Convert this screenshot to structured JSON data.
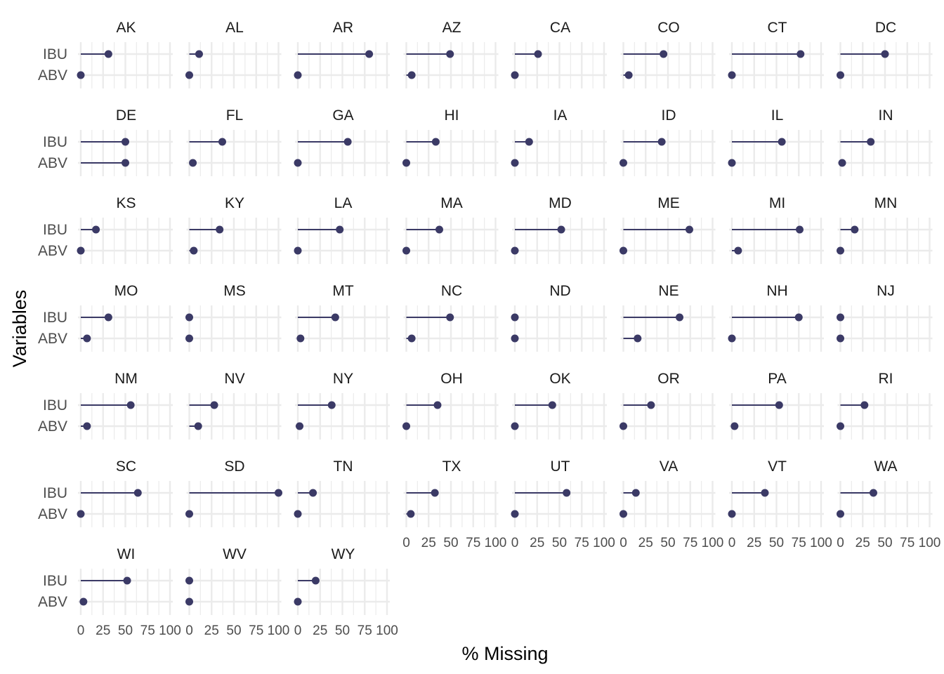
{
  "chart_data": {
    "type": "lollipop",
    "layout": "faceted",
    "ncol": 8,
    "xlabel": "% Missing",
    "ylabel": "Variables",
    "variables": [
      "IBU",
      "ABV"
    ],
    "xlim": [
      0,
      100
    ],
    "x_ticks": [
      0,
      25,
      50,
      75,
      100
    ],
    "x_tick_labels": [
      "0",
      "25",
      "50",
      "75",
      "100"
    ],
    "grid": true,
    "colors": {
      "point": "#3b3a66",
      "grid": "#ebebeb",
      "text": "#4d4d4d"
    },
    "facets": [
      {
        "state": "AK",
        "IBU": 31,
        "ABV": 0
      },
      {
        "state": "AL",
        "IBU": 11,
        "ABV": 0
      },
      {
        "state": "AR",
        "IBU": 80,
        "ABV": 0
      },
      {
        "state": "AZ",
        "IBU": 49,
        "ABV": 6
      },
      {
        "state": "CA",
        "IBU": 26,
        "ABV": 0
      },
      {
        "state": "CO",
        "IBU": 45,
        "ABV": 6
      },
      {
        "state": "CT",
        "IBU": 77,
        "ABV": 0
      },
      {
        "state": "DC",
        "IBU": 50,
        "ABV": 0
      },
      {
        "state": "DE",
        "IBU": 50,
        "ABV": 50
      },
      {
        "state": "FL",
        "IBU": 37,
        "ABV": 4
      },
      {
        "state": "GA",
        "IBU": 56,
        "ABV": 0
      },
      {
        "state": "HI",
        "IBU": 33,
        "ABV": 0
      },
      {
        "state": "IA",
        "IBU": 16,
        "ABV": 0
      },
      {
        "state": "ID",
        "IBU": 43,
        "ABV": 0
      },
      {
        "state": "IL",
        "IBU": 56,
        "ABV": 0
      },
      {
        "state": "IN",
        "IBU": 34,
        "ABV": 2
      },
      {
        "state": "KS",
        "IBU": 17,
        "ABV": 0
      },
      {
        "state": "KY",
        "IBU": 34,
        "ABV": 5
      },
      {
        "state": "LA",
        "IBU": 47,
        "ABV": 0
      },
      {
        "state": "MA",
        "IBU": 37,
        "ABV": 0
      },
      {
        "state": "MD",
        "IBU": 52,
        "ABV": 0
      },
      {
        "state": "ME",
        "IBU": 74,
        "ABV": 0
      },
      {
        "state": "MI",
        "IBU": 76,
        "ABV": 7
      },
      {
        "state": "MN",
        "IBU": 16,
        "ABV": 0
      },
      {
        "state": "MO",
        "IBU": 31,
        "ABV": 7
      },
      {
        "state": "MS",
        "IBU": 0,
        "ABV": 0
      },
      {
        "state": "MT",
        "IBU": 42,
        "ABV": 3
      },
      {
        "state": "NC",
        "IBU": 49,
        "ABV": 6
      },
      {
        "state": "ND",
        "IBU": 0,
        "ABV": 0
      },
      {
        "state": "NE",
        "IBU": 63,
        "ABV": 16
      },
      {
        "state": "NH",
        "IBU": 75,
        "ABV": 0
      },
      {
        "state": "NJ",
        "IBU": 0,
        "ABV": 0
      },
      {
        "state": "NM",
        "IBU": 56,
        "ABV": 7
      },
      {
        "state": "NV",
        "IBU": 28,
        "ABV": 10
      },
      {
        "state": "NY",
        "IBU": 38,
        "ABV": 2
      },
      {
        "state": "OH",
        "IBU": 35,
        "ABV": 0
      },
      {
        "state": "OK",
        "IBU": 42,
        "ABV": 0
      },
      {
        "state": "OR",
        "IBU": 31,
        "ABV": 0
      },
      {
        "state": "PA",
        "IBU": 53,
        "ABV": 3
      },
      {
        "state": "RI",
        "IBU": 27,
        "ABV": 0
      },
      {
        "state": "SC",
        "IBU": 64,
        "ABV": 0
      },
      {
        "state": "SD",
        "IBU": 100,
        "ABV": 0
      },
      {
        "state": "TN",
        "IBU": 17,
        "ABV": 0
      },
      {
        "state": "TX",
        "IBU": 32,
        "ABV": 5
      },
      {
        "state": "UT",
        "IBU": 58,
        "ABV": 0
      },
      {
        "state": "VA",
        "IBU": 14,
        "ABV": 0
      },
      {
        "state": "VT",
        "IBU": 37,
        "ABV": 0
      },
      {
        "state": "WA",
        "IBU": 37,
        "ABV": 0
      },
      {
        "state": "WI",
        "IBU": 52,
        "ABV": 3
      },
      {
        "state": "WV",
        "IBU": 0,
        "ABV": 0
      },
      {
        "state": "WY",
        "IBU": 20,
        "ABV": 0
      }
    ]
  }
}
